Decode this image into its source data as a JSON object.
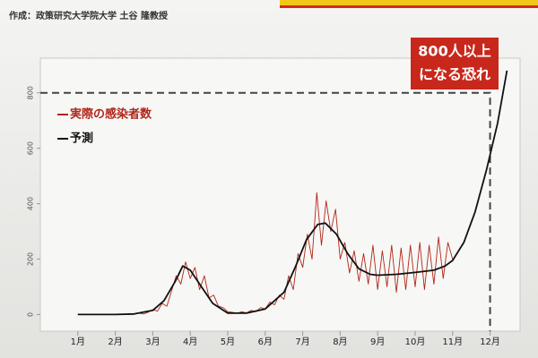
{
  "chart_data": {
    "type": "line",
    "source": "作成：政策研究大学院大学 土谷 隆教授",
    "annotation": [
      "800人以上",
      "になる恐れ"
    ],
    "xlim": [
      0,
      12.8
    ],
    "ylim": [
      -60,
      925
    ],
    "xticks": [
      {
        "value": 1,
        "label": "1月"
      },
      {
        "value": 2,
        "label": "2月"
      },
      {
        "value": 3,
        "label": "3月"
      },
      {
        "value": 4,
        "label": "4月"
      },
      {
        "value": 5,
        "label": "5月"
      },
      {
        "value": 6,
        "label": "6月"
      },
      {
        "value": 7,
        "label": "7月"
      },
      {
        "value": 8,
        "label": "8月"
      },
      {
        "value": 9,
        "label": "9月"
      },
      {
        "value": 10,
        "label": "10月"
      },
      {
        "value": 11,
        "label": "11月"
      },
      {
        "value": 12,
        "label": "12月"
      }
    ],
    "yticks": [
      0,
      200,
      400,
      600,
      800
    ],
    "reference_line": {
      "y": 800,
      "x": 12,
      "color": "#444444"
    },
    "series": [
      {
        "name": "実際の感染者数",
        "color": "#b0261a",
        "x": [
          1,
          1.125,
          1.25,
          1.375,
          1.5,
          1.625,
          1.75,
          1.875,
          2,
          2.125,
          2.25,
          2.375,
          2.5,
          2.625,
          2.75,
          2.875,
          3,
          3.125,
          3.25,
          3.375,
          3.5,
          3.625,
          3.75,
          3.875,
          4,
          4.125,
          4.25,
          4.375,
          4.5,
          4.625,
          4.75,
          4.875,
          5,
          5.125,
          5.25,
          5.375,
          5.5,
          5.625,
          5.75,
          5.875,
          6,
          6.125,
          6.25,
          6.375,
          6.5,
          6.625,
          6.75,
          6.875,
          7,
          7.125,
          7.25,
          7.375,
          7.5,
          7.625,
          7.75,
          7.875,
          8,
          8.125,
          8.25,
          8.375,
          8.5,
          8.625,
          8.75,
          8.875,
          9,
          9.125,
          9.25,
          9.375,
          9.5,
          9.625,
          9.75,
          9.875,
          10,
          10.125,
          10.25,
          10.375,
          10.5,
          10.625,
          10.75,
          10.875,
          11
        ],
        "values": [
          0,
          0,
          0,
          0,
          0,
          0,
          0,
          0,
          0,
          2,
          0,
          3,
          1,
          5,
          2,
          8,
          18,
          12,
          40,
          30,
          85,
          140,
          110,
          190,
          130,
          170,
          90,
          140,
          60,
          70,
          30,
          25,
          10,
          8,
          5,
          10,
          6,
          15,
          10,
          25,
          20,
          45,
          35,
          70,
          55,
          140,
          90,
          220,
          170,
          290,
          200,
          440,
          250,
          410,
          300,
          380,
          200,
          260,
          150,
          230,
          120,
          220,
          110,
          250,
          90,
          230,
          100,
          250,
          80,
          240,
          90,
          250,
          100,
          260,
          90,
          250,
          110,
          280,
          130,
          260,
          200
        ]
      },
      {
        "name": "予測",
        "color": "#111111",
        "x": [
          1,
          1.5,
          2,
          2.5,
          3,
          3.3,
          3.6,
          3.8,
          4,
          4.3,
          4.6,
          5,
          5.5,
          6,
          6.5,
          6.8,
          7.1,
          7.4,
          7.6,
          7.9,
          8.2,
          8.5,
          8.8,
          9,
          9.5,
          10,
          10.5,
          10.8,
          11,
          11.3,
          11.6,
          11.9,
          12.2,
          12.45
        ],
        "values": [
          0,
          0,
          0,
          2,
          15,
          50,
          120,
          175,
          160,
          100,
          40,
          5,
          5,
          20,
          80,
          170,
          270,
          325,
          330,
          290,
          220,
          165,
          145,
          142,
          145,
          152,
          160,
          175,
          195,
          260,
          370,
          520,
          690,
          880
        ]
      }
    ]
  }
}
